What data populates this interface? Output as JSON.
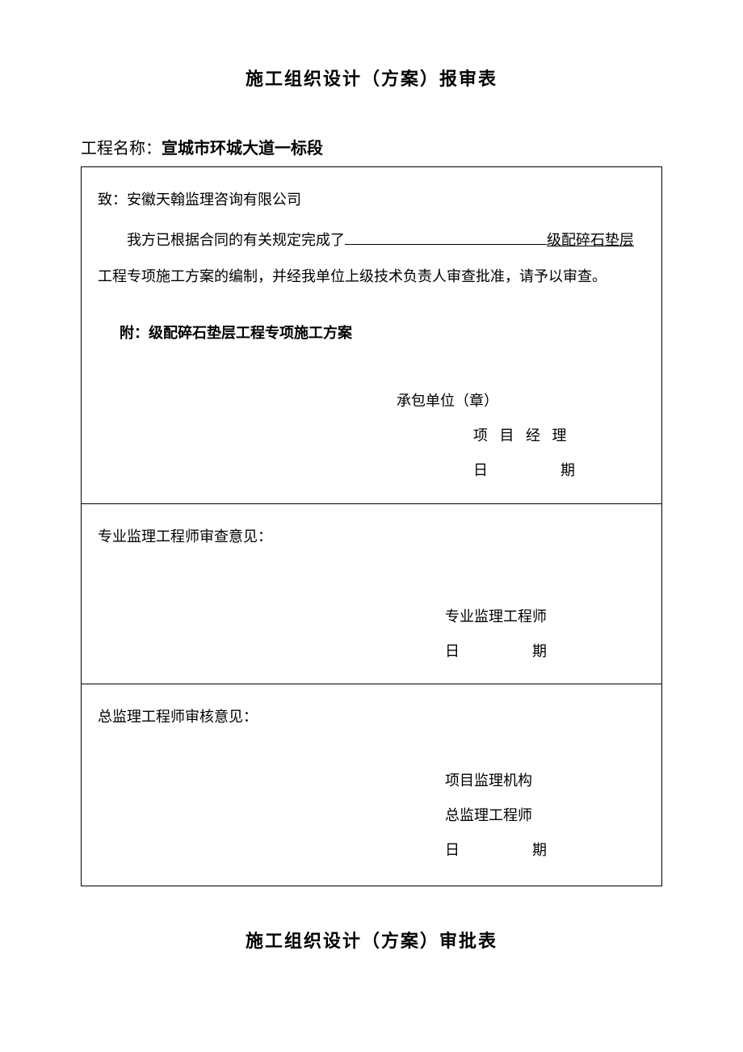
{
  "title1": "施工组织设计（方案）报审表",
  "project": {
    "label": "工程名称：",
    "value": "宣城市环城大道一标段"
  },
  "section1": {
    "addressee": "致：安徽天翰监理咨询有限公司",
    "body_part1": "我方已根据合同的有关规定完成了",
    "body_underlined": "级配碎石垫层",
    "body_part2": "工程专项施工方案的编制，并经我单位上级技术负责人审查批准，请予以审查。",
    "attachment": "附：级配碎石垫层工程专项施工方案",
    "sig_contractor": "承包单位（章）",
    "sig_pm": "项 目 经 理",
    "sig_date": "日　　期"
  },
  "section2": {
    "review_label": "专业监理工程师审查意见：",
    "sig_engineer": "专业监理工程师",
    "sig_date": "日　　期"
  },
  "section3": {
    "review_label": "总监理工程师审核意见：",
    "sig_org": "项目监理机构",
    "sig_engineer": "总监理工程师",
    "sig_date": "日　　期"
  },
  "title2": "施工组织设计（方案）审批表"
}
